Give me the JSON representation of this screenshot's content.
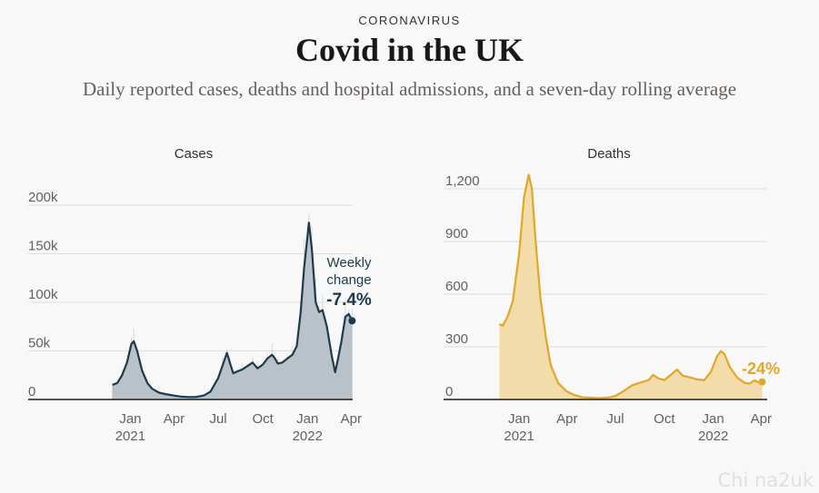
{
  "header": {
    "kicker": "CORONAVIRUS",
    "title": "Covid in the UK",
    "subtitle": "Daily reported cases, deaths and hospital admissions, and a seven-day rolling average"
  },
  "watermark": "Chi na2uk",
  "colors": {
    "cases": "#1e3a4a",
    "cases_fill": "#b8c2c8",
    "deaths": "#e0a729",
    "deaths_fill": "#f2dcaa",
    "grid": "#dedede"
  },
  "chart_data": [
    {
      "type": "area",
      "title": "Cases",
      "x_unit": "month",
      "x_ticks": [
        {
          "label": "Jan",
          "year": "2021",
          "x": "2021-01"
        },
        {
          "label": "Apr",
          "year": "",
          "x": "2021-04"
        },
        {
          "label": "Jul",
          "year": "",
          "x": "2021-07"
        },
        {
          "label": "Oct",
          "year": "",
          "x": "2021-10"
        },
        {
          "label": "Jan",
          "year": "2022",
          "x": "2022-01"
        },
        {
          "label": "Apr",
          "year": "",
          "x": "2022-04"
        }
      ],
      "y_ticks": [
        {
          "label": "0",
          "v": 0
        },
        {
          "label": "50k",
          "v": 50000
        },
        {
          "label": "100k",
          "v": 100000
        },
        {
          "label": "150k",
          "v": 150000
        },
        {
          "label": "200k",
          "v": 200000
        }
      ],
      "ylim": [
        0,
        200000
      ],
      "xlim": [
        "2020-10",
        "2022-04"
      ],
      "annotation": {
        "line1": "Weekly",
        "line2": "change",
        "value": "-7.4%"
      },
      "series": [
        {
          "values": [
            [
              "2020-11-25",
              15000
            ],
            [
              "2020-12-05",
              17000
            ],
            [
              "2020-12-15",
              25000
            ],
            [
              "2020-12-25",
              38000
            ],
            [
              "2021-01-03",
              57000
            ],
            [
              "2021-01-08",
              60000
            ],
            [
              "2021-01-15",
              50000
            ],
            [
              "2021-01-25",
              30000
            ],
            [
              "2021-02-05",
              17000
            ],
            [
              "2021-02-15",
              11000
            ],
            [
              "2021-03-01",
              7000
            ],
            [
              "2021-03-15",
              5500
            ],
            [
              "2021-04-01",
              4000
            ],
            [
              "2021-04-15",
              3000
            ],
            [
              "2021-05-01",
              2500
            ],
            [
              "2021-05-15",
              2500
            ],
            [
              "2021-06-01",
              4000
            ],
            [
              "2021-06-15",
              8000
            ],
            [
              "2021-07-01",
              22000
            ],
            [
              "2021-07-10",
              35000
            ],
            [
              "2021-07-19",
              48000
            ],
            [
              "2021-07-25",
              38000
            ],
            [
              "2021-08-01",
              27000
            ],
            [
              "2021-08-10",
              29000
            ],
            [
              "2021-08-20",
              31000
            ],
            [
              "2021-09-01",
              35000
            ],
            [
              "2021-09-10",
              38000
            ],
            [
              "2021-09-20",
              32000
            ],
            [
              "2021-10-01",
              36000
            ],
            [
              "2021-10-10",
              42000
            ],
            [
              "2021-10-20",
              46000
            ],
            [
              "2021-10-25",
              43000
            ],
            [
              "2021-11-01",
              37000
            ],
            [
              "2021-11-10",
              38000
            ],
            [
              "2021-11-20",
              42000
            ],
            [
              "2021-12-01",
              46000
            ],
            [
              "2021-12-10",
              55000
            ],
            [
              "2021-12-18",
              90000
            ],
            [
              "2021-12-25",
              135000
            ],
            [
              "2022-01-04",
              182000
            ],
            [
              "2022-01-10",
              155000
            ],
            [
              "2022-01-18",
              100000
            ],
            [
              "2022-01-25",
              90000
            ],
            [
              "2022-02-01",
              92000
            ],
            [
              "2022-02-10",
              75000
            ],
            [
              "2022-02-20",
              45000
            ],
            [
              "2022-02-27",
              28000
            ],
            [
              "2022-03-05",
              42000
            ],
            [
              "2022-03-12",
              60000
            ],
            [
              "2022-03-20",
              85000
            ],
            [
              "2022-03-27",
              88000
            ],
            [
              "2022-04-03",
              81000
            ]
          ]
        }
      ]
    },
    {
      "type": "area",
      "title": "Deaths",
      "x_unit": "month",
      "x_ticks": [
        {
          "label": "Jan",
          "year": "2021",
          "x": "2021-01"
        },
        {
          "label": "Apr",
          "year": "",
          "x": "2021-04"
        },
        {
          "label": "Jul",
          "year": "",
          "x": "2021-07"
        },
        {
          "label": "Oct",
          "year": "",
          "x": "2021-10"
        },
        {
          "label": "Jan",
          "year": "2022",
          "x": "2022-01"
        },
        {
          "label": "Apr",
          "year": "",
          "x": "2022-04"
        }
      ],
      "y_ticks": [
        {
          "label": "0",
          "v": 0
        },
        {
          "label": "300",
          "v": 300
        },
        {
          "label": "600",
          "v": 600
        },
        {
          "label": "900",
          "v": 900
        },
        {
          "label": "1,200",
          "v": 1200
        }
      ],
      "ylim": [
        0,
        1200
      ],
      "xlim": [
        "2020-10",
        "2022-04"
      ],
      "annotation": {
        "value": "-24%"
      },
      "series": [
        {
          "values": [
            [
              "2020-11-25",
              430
            ],
            [
              "2020-12-01",
              420
            ],
            [
              "2020-12-10",
              470
            ],
            [
              "2020-12-20",
              560
            ],
            [
              "2021-01-01",
              830
            ],
            [
              "2021-01-10",
              1150
            ],
            [
              "2021-01-19",
              1280
            ],
            [
              "2021-01-25",
              1200
            ],
            [
              "2021-02-01",
              900
            ],
            [
              "2021-02-10",
              580
            ],
            [
              "2021-02-20",
              360
            ],
            [
              "2021-03-01",
              200
            ],
            [
              "2021-03-15",
              95
            ],
            [
              "2021-04-01",
              45
            ],
            [
              "2021-04-15",
              25
            ],
            [
              "2021-05-01",
              12
            ],
            [
              "2021-06-01",
              8
            ],
            [
              "2021-06-20",
              12
            ],
            [
              "2021-07-01",
              20
            ],
            [
              "2021-07-15",
              45
            ],
            [
              "2021-08-01",
              80
            ],
            [
              "2021-08-15",
              95
            ],
            [
              "2021-09-01",
              110
            ],
            [
              "2021-09-10",
              140
            ],
            [
              "2021-09-20",
              120
            ],
            [
              "2021-10-01",
              110
            ],
            [
              "2021-10-15",
              145
            ],
            [
              "2021-10-25",
              170
            ],
            [
              "2021-11-05",
              135
            ],
            [
              "2021-11-20",
              125
            ],
            [
              "2021-12-01",
              115
            ],
            [
              "2021-12-15",
              110
            ],
            [
              "2021-12-28",
              160
            ],
            [
              "2022-01-08",
              245
            ],
            [
              "2022-01-15",
              275
            ],
            [
              "2022-01-22",
              260
            ],
            [
              "2022-02-01",
              185
            ],
            [
              "2022-02-15",
              125
            ],
            [
              "2022-03-01",
              95
            ],
            [
              "2022-03-10",
              90
            ],
            [
              "2022-03-20",
              110
            ],
            [
              "2022-03-25",
              100
            ],
            [
              "2022-04-03",
              100
            ]
          ]
        }
      ]
    }
  ]
}
